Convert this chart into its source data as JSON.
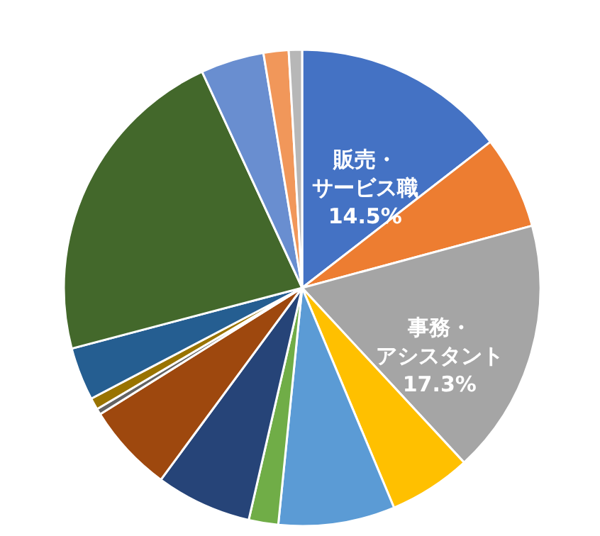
{
  "chart_data": {
    "type": "pie",
    "categories": [
      "販売・サービス職",
      null,
      "事務・アシスタント",
      null,
      null,
      null,
      null,
      null,
      null,
      null,
      null,
      null,
      null,
      null,
      null
    ],
    "values": [
      14.5,
      6.3,
      17.3,
      5.6,
      7.9,
      2.0,
      6.5,
      6.0,
      0.4,
      0.8,
      3.6,
      22.2,
      4.3,
      1.7,
      0.9
    ],
    "value_labels": [
      "14.5%",
      null,
      "17.3%",
      null,
      null,
      null,
      null,
      null,
      null,
      null,
      null,
      null,
      null,
      null,
      null
    ],
    "colors": [
      "#4472c4",
      "#ed7d31",
      "#a5a5a5",
      "#ffc000",
      "#5b9bd5",
      "#70ad47",
      "#264478",
      "#9e480e",
      "#636363",
      "#997300",
      "#255e91",
      "#43682b",
      "#698ed0",
      "#f1975a",
      "#b7b7b7"
    ]
  }
}
